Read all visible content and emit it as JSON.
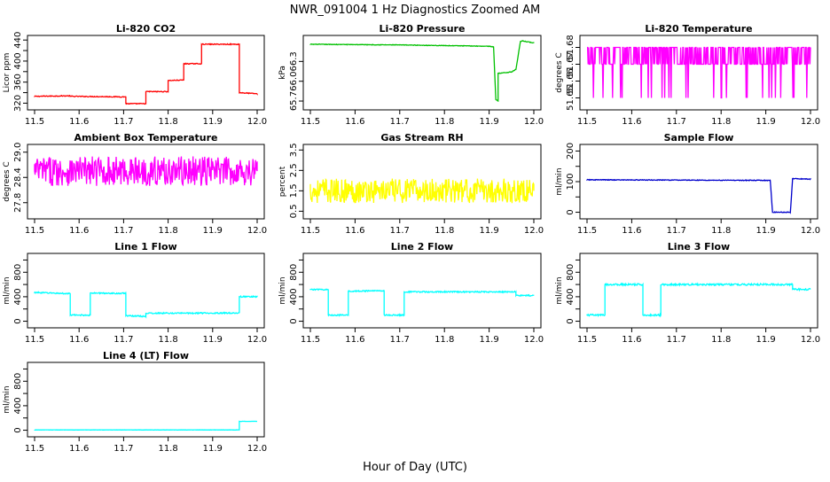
{
  "title": "NWR_091004  1 Hz Diagnostics Zoomed AM",
  "xlabel": "Hour of Day (UTC)",
  "chart_data": [
    {
      "type": "line",
      "title": "Li-820 CO2",
      "ylabel": "Licor ppm",
      "color": "#ff0000",
      "xlim": [
        11.5,
        12.0
      ],
      "ylim": [
        314,
        442
      ],
      "xticks": [
        "11.5",
        "11.6",
        "11.7",
        "11.8",
        "11.9",
        "12.0"
      ],
      "yticks": [
        "320",
        "340",
        "360",
        "380",
        "400",
        "420",
        "440"
      ],
      "ylabel_every": 2,
      "noise": 0.8,
      "series": [
        {
          "x": [
            11.5,
            11.58,
            11.58,
            11.705,
            11.705,
            11.75,
            11.75,
            11.8,
            11.8,
            11.835,
            11.835,
            11.875,
            11.875,
            11.96,
            11.96,
            12.0
          ],
          "y": [
            333,
            334,
            333,
            332,
            319,
            319,
            342,
            342,
            363,
            364,
            395,
            395,
            432,
            432,
            340,
            338
          ]
        }
      ]
    },
    {
      "type": "line",
      "title": "Li-820 Pressure",
      "ylabel": "kPa",
      "color": "#00c000",
      "xlim": [
        11.5,
        12.0
      ],
      "ylim": [
        65.62,
        66.64
      ],
      "xticks": [
        "11.5",
        "11.6",
        "11.7",
        "11.8",
        "11.9",
        "12.0"
      ],
      "yticks": [
        "65.7",
        "66.0",
        "66.3"
      ],
      "ylabel_every": 1,
      "noise": 0.004,
      "series": [
        {
          "x": [
            11.5,
            11.7,
            11.9,
            11.91,
            11.915,
            11.92,
            11.92,
            11.95,
            11.955,
            11.96,
            11.97,
            11.975,
            12.0
          ],
          "y": [
            66.56,
            66.55,
            66.53,
            66.52,
            65.72,
            65.7,
            66.12,
            66.14,
            66.16,
            66.18,
            66.6,
            66.61,
            66.58
          ]
        }
      ]
    },
    {
      "type": "line",
      "title": "Li-820 Temperature",
      "ylabel": "degrees C",
      "color": "#ff00ff",
      "xlim": [
        11.5,
        12.0
      ],
      "ylim": [
        51.645,
        51.685
      ],
      "xticks": [
        "11.5",
        "11.6",
        "11.7",
        "11.8",
        "11.9",
        "12.0"
      ],
      "yticks": [
        "51.65",
        "51.66",
        "51.67",
        "51.68"
      ],
      "ylabel_every": 1,
      "series": [
        {
          "x": [
            11.5,
            12.0
          ],
          "y": [
            51.67,
            51.67
          ]
        }
      ]
    },
    {
      "type": "line",
      "title": "Ambient Box Temperature",
      "ylabel": "degrees C",
      "color": "#ff00ff",
      "xlim": [
        11.5,
        12.0
      ],
      "ylim": [
        27.5,
        29.1
      ],
      "xticks": [
        "11.5",
        "11.6",
        "11.7",
        "11.8",
        "11.9",
        "12.0"
      ],
      "yticks": [
        "27.8",
        "28.4",
        "29.0"
      ],
      "ylabel_every": 1,
      "noise": 0.35,
      "series": [
        {
          "x": [
            11.5,
            12.0
          ],
          "y": [
            28.55,
            28.55
          ]
        }
      ]
    },
    {
      "type": "line",
      "title": "Gas Stream RH",
      "ylabel": "percent",
      "color": "#ffff00",
      "xlim": [
        11.5,
        12.0
      ],
      "ylim": [
        0.3,
        3.6
      ],
      "xticks": [
        "11.5",
        "11.6",
        "11.7",
        "11.8",
        "11.9",
        "12.0"
      ],
      "yticks": [
        "0.5",
        "1.5",
        "2.5",
        "3.5"
      ],
      "ylabel_every": 1,
      "noise": 0.6,
      "series": [
        {
          "x": [
            11.5,
            12.0
          ],
          "y": [
            1.5,
            1.5
          ]
        }
      ]
    },
    {
      "type": "line",
      "title": "Sample Flow",
      "ylabel": "ml/min",
      "color": "#0000cc",
      "xlim": [
        11.5,
        12.0
      ],
      "ylim": [
        -10,
        210
      ],
      "xticks": [
        "11.5",
        "11.6",
        "11.7",
        "11.8",
        "11.9",
        "12.0"
      ],
      "yticks": [
        "0",
        "50",
        "100",
        "150",
        "200"
      ],
      "ylabel_every": 2,
      "noise": 1.2,
      "series": [
        {
          "x": [
            11.5,
            11.91,
            11.915,
            11.955,
            11.96,
            12.0
          ],
          "y": [
            106,
            104,
            0,
            0,
            110,
            108
          ]
        }
      ]
    },
    {
      "type": "line",
      "title": "Line 1 Flow",
      "ylabel": "ml/min",
      "color": "#00ffff",
      "xlim": [
        11.5,
        12.0
      ],
      "ylim": [
        -50,
        1050
      ],
      "xticks": [
        "11.5",
        "11.6",
        "11.7",
        "11.8",
        "11.9",
        "12.0"
      ],
      "yticks": [
        "0",
        "200",
        "400",
        "600",
        "800",
        "1000"
      ],
      "ylabel_every": 2,
      "noise": 10,
      "series": [
        {
          "x": [
            11.5,
            11.58,
            11.58,
            11.625,
            11.625,
            11.705,
            11.705,
            11.75,
            11.75,
            11.96,
            11.96,
            12.0
          ],
          "y": [
            470,
            450,
            100,
            100,
            460,
            455,
            90,
            80,
            130,
            135,
            400,
            400
          ]
        }
      ]
    },
    {
      "type": "line",
      "title": "Line 2 Flow",
      "ylabel": "ml/min",
      "color": "#00ffff",
      "xlim": [
        11.5,
        12.0
      ],
      "ylim": [
        -50,
        1050
      ],
      "xticks": [
        "11.5",
        "11.6",
        "11.7",
        "11.8",
        "11.9",
        "12.0"
      ],
      "yticks": [
        "0",
        "200",
        "400",
        "600",
        "800",
        "1000"
      ],
      "ylabel_every": 2,
      "noise": 10,
      "series": [
        {
          "x": [
            11.5,
            11.54,
            11.54,
            11.585,
            11.585,
            11.665,
            11.665,
            11.71,
            11.71,
            11.96,
            11.96,
            12.0
          ],
          "y": [
            520,
            515,
            100,
            100,
            490,
            500,
            100,
            100,
            480,
            480,
            420,
            420
          ]
        }
      ]
    },
    {
      "type": "line",
      "title": "Line 3 Flow",
      "ylabel": "ml/min",
      "color": "#00ffff",
      "xlim": [
        11.5,
        12.0
      ],
      "ylim": [
        -50,
        1050
      ],
      "xticks": [
        "11.5",
        "11.6",
        "11.7",
        "11.8",
        "11.9",
        "12.0"
      ],
      "yticks": [
        "0",
        "200",
        "400",
        "600",
        "800",
        "1000"
      ],
      "ylabel_every": 2,
      "noise": 14,
      "series": [
        {
          "x": [
            11.5,
            11.54,
            11.54,
            11.625,
            11.625,
            11.665,
            11.665,
            11.96,
            11.96,
            12.0
          ],
          "y": [
            100,
            100,
            600,
            600,
            100,
            100,
            600,
            600,
            520,
            520
          ]
        }
      ]
    },
    {
      "type": "line",
      "title": "Line 4 (LT) Flow",
      "ylabel": "ml/min",
      "color": "#00ffff",
      "xlim": [
        11.5,
        12.0
      ],
      "ylim": [
        -50,
        1050
      ],
      "xticks": [
        "11.5",
        "11.6",
        "11.7",
        "11.8",
        "11.9",
        "12.0"
      ],
      "yticks": [
        "0",
        "200",
        "400",
        "600",
        "800",
        "1000"
      ],
      "ylabel_every": 2,
      "noise": 2,
      "series": [
        {
          "x": [
            11.5,
            11.96,
            11.96,
            12.0
          ],
          "y": [
            5,
            5,
            145,
            145
          ]
        }
      ]
    }
  ]
}
